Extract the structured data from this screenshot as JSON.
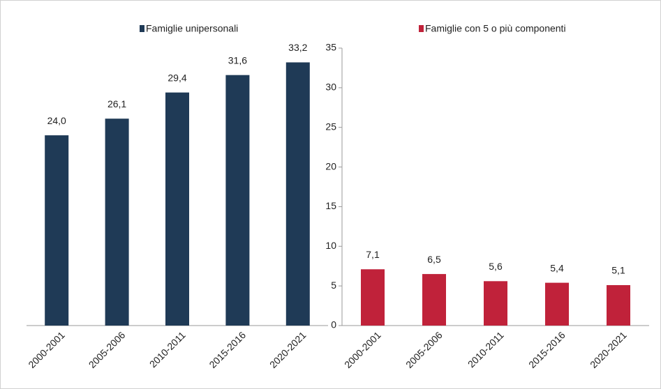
{
  "chart_data": [
    {
      "type": "bar",
      "categories": [
        "2000-2001",
        "2005-2006",
        "2010-2011",
        "2015-2016",
        "2020-2021"
      ],
      "series": [
        {
          "name": "Famiglie unipersonali",
          "color": "#1f3a56",
          "values": [
            24.0,
            26.1,
            29.4,
            31.6,
            33.2
          ],
          "value_labels": [
            "24,0",
            "26,1",
            "29,4",
            "31,6",
            "33,2"
          ]
        }
      ],
      "ylim": [
        0,
        35
      ]
    },
    {
      "type": "bar",
      "categories": [
        "2000-2001",
        "2005-2006",
        "2010-2011",
        "2015-2016",
        "2020-2021"
      ],
      "series": [
        {
          "name": "Famiglie con 5 o più componenti",
          "color": "#c0223a",
          "values": [
            7.1,
            6.5,
            5.6,
            5.4,
            5.1
          ],
          "value_labels": [
            "7,1",
            "6,5",
            "5,6",
            "5,4",
            "5,1"
          ]
        }
      ],
      "ylim": [
        0,
        35
      ],
      "yticks": [
        0,
        5,
        10,
        15,
        20,
        25,
        30,
        35
      ]
    }
  ]
}
